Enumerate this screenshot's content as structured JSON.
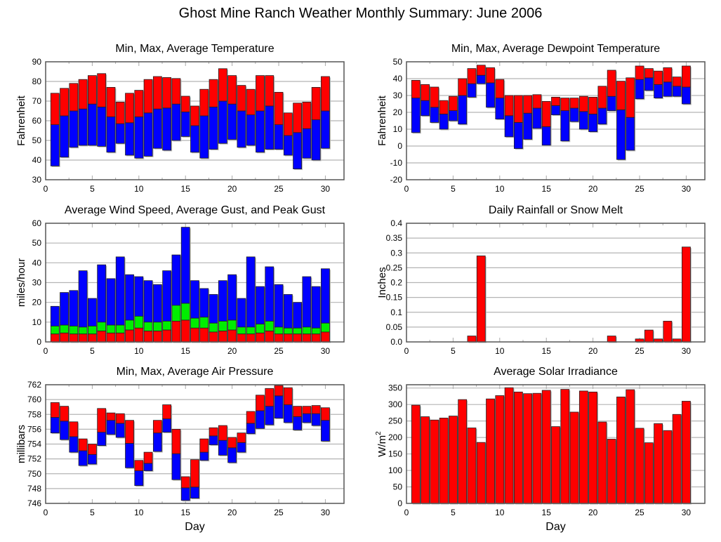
{
  "page_title": "Ghost Mine Ranch Weather Monthly Summary: June 2006",
  "colors": {
    "red": "#ff0000",
    "blue": "#0000ff",
    "green": "#00ee00",
    "grid": "#b4b4b4",
    "frame": "#555555"
  },
  "chart_data": [
    {
      "id": "temperature",
      "type": "bar",
      "subtype": "floating-stacked",
      "title": "Min, Max, Average Temperature",
      "xlabel": "",
      "ylabel": "Fahrenheit",
      "xlim": [
        0,
        32
      ],
      "ylim": [
        30,
        90
      ],
      "xticks": [
        0,
        5,
        10,
        15,
        20,
        25,
        30
      ],
      "yticks": [
        30,
        40,
        50,
        60,
        70,
        80,
        90
      ],
      "grid": true,
      "x": [
        1,
        2,
        3,
        4,
        5,
        6,
        7,
        8,
        9,
        10,
        11,
        12,
        13,
        14,
        15,
        16,
        17,
        18,
        19,
        20,
        21,
        22,
        23,
        24,
        25,
        26,
        27,
        28,
        29,
        30
      ],
      "series": [
        {
          "name": "Min",
          "values": [
            37,
            41.5,
            46.5,
            47.5,
            47.5,
            47,
            44,
            48.5,
            42.5,
            41,
            42,
            46,
            45,
            50,
            52,
            44,
            41,
            45.5,
            48.5,
            50.5,
            46.5,
            47.5,
            44,
            45.5,
            45.5,
            42.5,
            35.5,
            41,
            40,
            46
          ]
        },
        {
          "name": "Average",
          "values": [
            58,
            62.5,
            65,
            66,
            68.5,
            67,
            62,
            58.5,
            59,
            62,
            64,
            66,
            66.5,
            68.5,
            64.5,
            57.5,
            62.5,
            67,
            70,
            68.5,
            65,
            63,
            65,
            67.5,
            58,
            52.5,
            54,
            56,
            60.5,
            65
          ]
        },
        {
          "name": "Max",
          "values": [
            74,
            76.5,
            79,
            81,
            83,
            84,
            77,
            69.5,
            74,
            75.5,
            81,
            82.5,
            82,
            81.5,
            72.5,
            67.5,
            76,
            81,
            86.5,
            83,
            78,
            76,
            83,
            83,
            74.5,
            64,
            69,
            69.5,
            77,
            82.5
          ]
        }
      ]
    },
    {
      "id": "dewpoint",
      "type": "bar",
      "subtype": "floating-stacked",
      "title": "Min, Max, Average Dewpoint Temperature",
      "xlabel": "",
      "ylabel": "Fahrenheit",
      "xlim": [
        0,
        32
      ],
      "ylim": [
        -20,
        50
      ],
      "xticks": [
        0,
        5,
        10,
        15,
        20,
        25,
        30
      ],
      "yticks": [
        -20,
        -10,
        0,
        10,
        20,
        30,
        40,
        50
      ],
      "grid": true,
      "x": [
        1,
        2,
        3,
        4,
        5,
        6,
        7,
        8,
        9,
        10,
        11,
        12,
        13,
        14,
        15,
        16,
        17,
        18,
        19,
        20,
        21,
        22,
        23,
        24,
        25,
        26,
        27,
        28,
        29,
        30
      ],
      "series": [
        {
          "name": "Min",
          "values": [
            8,
            18,
            14,
            10,
            15,
            13,
            29,
            37,
            23,
            16,
            5.5,
            -1.5,
            4,
            10.5,
            0.5,
            18.5,
            3,
            14.5,
            10,
            8.5,
            13,
            21,
            -8,
            -2.5,
            28,
            33,
            28.5,
            29.5,
            29.5,
            25
          ]
        },
        {
          "name": "Average",
          "values": [
            28.5,
            27,
            23,
            19,
            21,
            30,
            37,
            42,
            37.5,
            28.5,
            18,
            14,
            19.5,
            22.5,
            11.5,
            24,
            21,
            22.5,
            20.5,
            19,
            22.5,
            29.5,
            21.5,
            17,
            39.5,
            40.5,
            36.5,
            38,
            35.5,
            35
          ]
        },
        {
          "name": "Max",
          "values": [
            39,
            36.5,
            35,
            27,
            29.5,
            40,
            46,
            48,
            46.5,
            39.5,
            30,
            30,
            30,
            30.5,
            26.5,
            29,
            28.5,
            28.5,
            29.5,
            29,
            35.5,
            45,
            38.5,
            40.5,
            47.5,
            46,
            44.5,
            46.5,
            41,
            47.5
          ]
        }
      ]
    },
    {
      "id": "wind",
      "type": "bar",
      "subtype": "stacked-overlay",
      "title": "Average Wind Speed, Average Gust, and Peak Gust",
      "xlabel": "",
      "ylabel": "miles/hour",
      "xlim": [
        0,
        32
      ],
      "ylim": [
        0,
        60
      ],
      "xticks": [
        0,
        5,
        10,
        15,
        20,
        25,
        30
      ],
      "yticks": [
        0,
        10,
        20,
        30,
        40,
        50,
        60
      ],
      "grid": true,
      "x": [
        1,
        2,
        3,
        4,
        5,
        6,
        7,
        8,
        9,
        10,
        11,
        12,
        13,
        14,
        15,
        16,
        17,
        18,
        19,
        20,
        21,
        22,
        23,
        24,
        25,
        26,
        27,
        28,
        29,
        30
      ],
      "series": [
        {
          "name": "Average Wind Speed",
          "values": [
            4,
            4.5,
            4,
            4,
            4,
            5.5,
            4.5,
            4.5,
            6,
            7,
            5.5,
            5.5,
            6,
            10.5,
            11,
            7,
            7,
            5,
            5.5,
            6,
            4,
            4,
            4.5,
            5.5,
            4,
            4,
            4,
            4,
            4,
            5
          ]
        },
        {
          "name": "Average Gust",
          "values": [
            8,
            8.5,
            8,
            7.5,
            8,
            10,
            8.5,
            8.5,
            11,
            13,
            10,
            10,
            10.5,
            18.5,
            19.5,
            12,
            12.5,
            9.5,
            10.5,
            11,
            7.5,
            7.5,
            9,
            10.5,
            7.5,
            7,
            7,
            7.5,
            7,
            9.5
          ]
        },
        {
          "name": "Peak Gust",
          "values": [
            18,
            25,
            26,
            36,
            22,
            39,
            32,
            43,
            34,
            33,
            31,
            29,
            36,
            44,
            58,
            31,
            27,
            24,
            31,
            34,
            22,
            43,
            28,
            38,
            29,
            24,
            20,
            33,
            28,
            37
          ]
        }
      ]
    },
    {
      "id": "rainfall",
      "type": "bar",
      "title": "Daily Rainfall or Snow Melt",
      "xlabel": "",
      "ylabel": "Inches",
      "xlim": [
        0,
        32
      ],
      "ylim": [
        0,
        0.4
      ],
      "xticks": [
        0,
        5,
        10,
        15,
        20,
        25,
        30
      ],
      "yticks": [
        0,
        0.05,
        0.1,
        0.15,
        0.2,
        0.25,
        0.3,
        0.35,
        0.4
      ],
      "ytick_labels": [
        "0.0",
        "0.05",
        "0.1",
        "0.15",
        "0.2",
        "0.25",
        "0.3",
        "0.35",
        "0.4"
      ],
      "grid": true,
      "x": [
        1,
        2,
        3,
        4,
        5,
        6,
        7,
        8,
        9,
        10,
        11,
        12,
        13,
        14,
        15,
        16,
        17,
        18,
        19,
        20,
        21,
        22,
        23,
        24,
        25,
        26,
        27,
        28,
        29,
        30
      ],
      "values": [
        0,
        0,
        0,
        0,
        0,
        0,
        0.02,
        0.29,
        0,
        0,
        0,
        0,
        0,
        0,
        0,
        0,
        0,
        0,
        0,
        0,
        0,
        0.02,
        0,
        0,
        0.01,
        0.04,
        0.01,
        0.07,
        0.01,
        0.32
      ]
    },
    {
      "id": "pressure",
      "type": "bar",
      "subtype": "floating-stacked",
      "title": "Min, Max, Average Air Pressure",
      "xlabel": "Day",
      "ylabel": "millibars",
      "xlim": [
        0,
        32
      ],
      "ylim": [
        746,
        762
      ],
      "xticks": [
        0,
        5,
        10,
        15,
        20,
        25,
        30
      ],
      "yticks": [
        746,
        748,
        750,
        752,
        754,
        756,
        758,
        760,
        762
      ],
      "grid": true,
      "x": [
        1,
        2,
        3,
        4,
        5,
        6,
        7,
        8,
        9,
        10,
        11,
        12,
        13,
        14,
        15,
        16,
        17,
        18,
        19,
        20,
        21,
        22,
        23,
        24,
        25,
        26,
        27,
        28,
        29,
        30
      ],
      "series": [
        {
          "name": "Min",
          "values": [
            755.5,
            754.6,
            752.9,
            751.1,
            751.3,
            753.8,
            755.3,
            754.9,
            750.8,
            748.4,
            750.4,
            753,
            755.6,
            749.2,
            746.4,
            746.7,
            751.8,
            753.9,
            752.5,
            751.5,
            752.9,
            755.4,
            756.1,
            756.6,
            757.5,
            756.9,
            755.9,
            756.9,
            756.5,
            754.4
          ]
        },
        {
          "name": "Average",
          "values": [
            757.6,
            757.1,
            755,
            753.1,
            752.6,
            755.6,
            757.2,
            756.8,
            754.1,
            750.4,
            751.4,
            755.5,
            757.4,
            752.7,
            748.1,
            748.2,
            752.9,
            755.1,
            754.5,
            753.5,
            754.2,
            756.8,
            758.5,
            759.1,
            760.5,
            759.3,
            757.7,
            758.1,
            758.1,
            757.2
          ]
        },
        {
          "name": "Max",
          "values": [
            759.6,
            759.1,
            757,
            754.7,
            754,
            758.8,
            758.2,
            758.1,
            757.2,
            751.8,
            752.9,
            757.2,
            759.3,
            756,
            749.6,
            751.9,
            754.7,
            756.2,
            756.5,
            754.9,
            755.5,
            758.4,
            760.6,
            761.5,
            761.9,
            761.6,
            759.1,
            759.1,
            759.2,
            758.9
          ]
        }
      ]
    },
    {
      "id": "solar",
      "type": "bar",
      "title": "Average Solar Irradiance",
      "xlabel": "Day",
      "ylabel": "W/m",
      "ylabel_sup": "2",
      "xlim": [
        0,
        32
      ],
      "ylim": [
        0,
        360
      ],
      "xticks": [
        0,
        5,
        10,
        15,
        20,
        25,
        30
      ],
      "yticks": [
        0,
        50,
        100,
        150,
        200,
        250,
        300,
        350
      ],
      "grid": true,
      "x": [
        1,
        2,
        3,
        4,
        5,
        6,
        7,
        8,
        9,
        10,
        11,
        12,
        13,
        14,
        15,
        16,
        17,
        18,
        19,
        20,
        21,
        22,
        23,
        24,
        25,
        26,
        27,
        28,
        29,
        30
      ],
      "values": [
        298,
        263,
        253,
        259,
        265,
        315,
        229,
        185,
        317,
        327,
        351,
        338,
        333,
        334,
        343,
        233,
        346,
        277,
        341,
        338,
        247,
        195,
        323,
        345,
        228,
        184,
        242,
        221,
        270,
        310
      ]
    }
  ]
}
